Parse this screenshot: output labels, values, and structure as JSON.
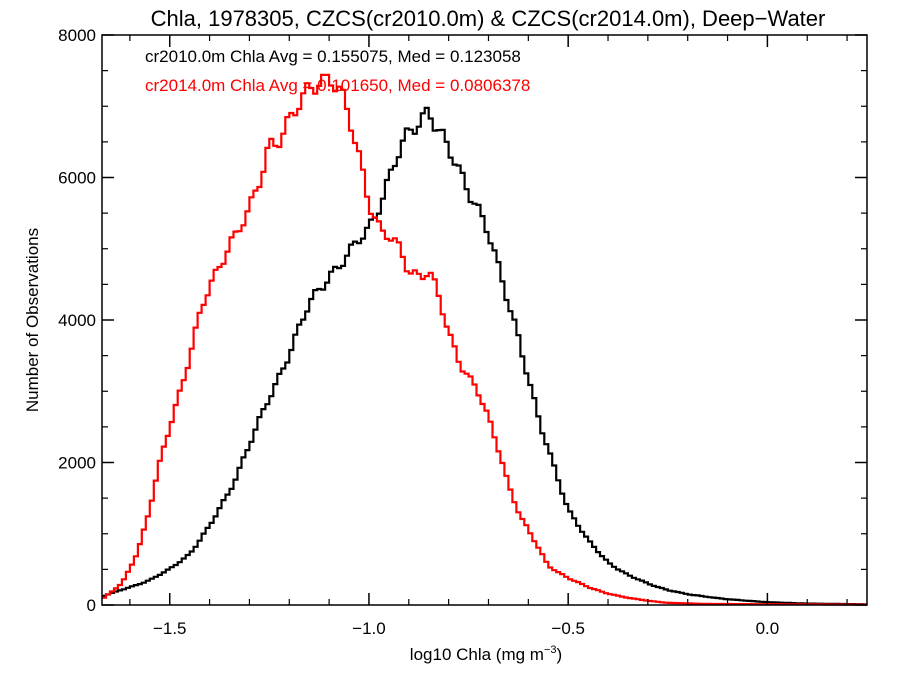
{
  "chart_data": {
    "type": "line",
    "step": true,
    "title": "Chla, 1978305, CZCS(cr2010.0m) & CZCS(cr2014.0m), Deep−Water",
    "xlabel_main": "log10 Chla (mg m",
    "xlabel_sup": "−3",
    "xlabel_close": ")",
    "ylabel": "Number of Observations",
    "xlim": [
      -1.67,
      0.25
    ],
    "ylim": [
      0,
      8000
    ],
    "x_ticks": [
      -1.5,
      -1.0,
      -0.5,
      0.0
    ],
    "x_tick_labels": [
      "−1.5",
      "−1.0",
      "−0.5",
      "0.0"
    ],
    "y_ticks": [
      0,
      2000,
      4000,
      6000,
      8000
    ],
    "y_tick_labels": [
      "0",
      "2000",
      "4000",
      "6000",
      "8000"
    ],
    "grid": false,
    "legend_position": "top-left",
    "series": [
      {
        "name": "cr2010.0m Chla Avg = 0.155075, Med = 0.123058",
        "color": "#000000",
        "points": [
          [
            -1.67,
            120
          ],
          [
            -1.6,
            250
          ],
          [
            -1.55,
            350
          ],
          [
            -1.5,
            500
          ],
          [
            -1.45,
            720
          ],
          [
            -1.4,
            1100
          ],
          [
            -1.35,
            1600
          ],
          [
            -1.3,
            2250
          ],
          [
            -1.25,
            2900
          ],
          [
            -1.2,
            3550
          ],
          [
            -1.15,
            4200
          ],
          [
            -1.1,
            4650
          ],
          [
            -1.05,
            4900
          ],
          [
            -1.0,
            5300
          ],
          [
            -0.97,
            5700
          ],
          [
            -0.93,
            6250
          ],
          [
            -0.9,
            6600
          ],
          [
            -0.87,
            6850
          ],
          [
            -0.85,
            7000
          ],
          [
            -0.83,
            6700
          ],
          [
            -0.8,
            6350
          ],
          [
            -0.77,
            6050
          ],
          [
            -0.73,
            5650
          ],
          [
            -0.7,
            5200
          ],
          [
            -0.67,
            4600
          ],
          [
            -0.63,
            3900
          ],
          [
            -0.6,
            3200
          ],
          [
            -0.57,
            2500
          ],
          [
            -0.53,
            1850
          ],
          [
            -0.5,
            1350
          ],
          [
            -0.45,
            900
          ],
          [
            -0.4,
            600
          ],
          [
            -0.35,
            420
          ],
          [
            -0.3,
            300
          ],
          [
            -0.25,
            210
          ],
          [
            -0.2,
            150
          ],
          [
            -0.1,
            80
          ],
          [
            0.0,
            40
          ],
          [
            0.1,
            20
          ],
          [
            0.25,
            10
          ]
        ]
      },
      {
        "name": "cr2014.0m Chla Avg = 0.101650, Med = 0.0806378",
        "color": "#ff0000",
        "points": [
          [
            -1.67,
            80
          ],
          [
            -1.62,
            300
          ],
          [
            -1.58,
            750
          ],
          [
            -1.55,
            1350
          ],
          [
            -1.52,
            2100
          ],
          [
            -1.48,
            2900
          ],
          [
            -1.45,
            3500
          ],
          [
            -1.42,
            4150
          ],
          [
            -1.38,
            4700
          ],
          [
            -1.35,
            5100
          ],
          [
            -1.3,
            5500
          ],
          [
            -1.27,
            6000
          ],
          [
            -1.25,
            6500
          ],
          [
            -1.22,
            6600
          ],
          [
            -1.2,
            6800
          ],
          [
            -1.17,
            7000
          ],
          [
            -1.15,
            7250
          ],
          [
            -1.12,
            7400
          ],
          [
            -1.1,
            7450
          ],
          [
            -1.07,
            7150
          ],
          [
            -1.05,
            6800
          ],
          [
            -1.02,
            6200
          ],
          [
            -1.0,
            5700
          ],
          [
            -0.97,
            5250
          ],
          [
            -0.95,
            5150
          ],
          [
            -0.92,
            4950
          ],
          [
            -0.9,
            4700
          ],
          [
            -0.87,
            4650
          ],
          [
            -0.85,
            4700
          ],
          [
            -0.83,
            4400
          ],
          [
            -0.8,
            3800
          ],
          [
            -0.77,
            3400
          ],
          [
            -0.73,
            3050
          ],
          [
            -0.7,
            2600
          ],
          [
            -0.67,
            2100
          ],
          [
            -0.65,
            1700
          ],
          [
            -0.62,
            1250
          ],
          [
            -0.58,
            850
          ],
          [
            -0.55,
            550
          ],
          [
            -0.5,
            380
          ],
          [
            -0.45,
            250
          ],
          [
            -0.4,
            160
          ],
          [
            -0.35,
            100
          ],
          [
            -0.3,
            60
          ],
          [
            -0.25,
            30
          ],
          [
            -0.15,
            15
          ],
          [
            0.25,
            5
          ]
        ]
      }
    ]
  }
}
